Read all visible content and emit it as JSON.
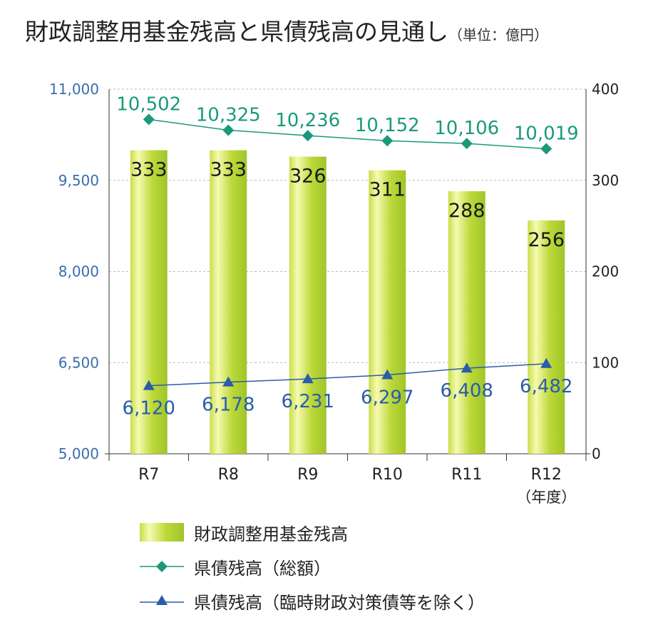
{
  "title": {
    "main": "財政調整用基金残高と県債残高の見通し",
    "unit": "（単位：億円）"
  },
  "legend": {
    "fund": "財政調整用基金残高",
    "debt_total": "県債残高（総額）",
    "debt_excl": "県債残高（臨時財政対策債等を除く）"
  },
  "colors": {
    "bar_gradient": [
      "#c8de4a",
      "#f6fab0",
      "#bcd838",
      "#9fc62a"
    ],
    "debt_total": "#1a9a7a",
    "debt_excl": "#2a5cab",
    "left_axis_text": "#3a6cb0"
  },
  "chart_data": {
    "type": "bar",
    "categories": [
      "R7",
      "R8",
      "R9",
      "R10",
      "R11",
      "R12"
    ],
    "x_unit_label": "（年度）",
    "left_axis": {
      "ylim": [
        5000,
        11000
      ],
      "ticks": [
        "5,000",
        "6,500",
        "8,000",
        "9,500",
        "11,000"
      ],
      "tick_values": [
        5000,
        6500,
        8000,
        9500,
        11000
      ]
    },
    "right_axis": {
      "ylim": [
        0,
        400
      ],
      "ticks": [
        "0",
        "100",
        "200",
        "300",
        "400"
      ],
      "tick_values": [
        0,
        100,
        200,
        300,
        400
      ]
    },
    "grid": true,
    "legend_position": "bottom",
    "series": [
      {
        "name": "財政調整用基金残高",
        "type": "bar",
        "axis": "right",
        "values": [
          333,
          333,
          326,
          311,
          288,
          256
        ],
        "labels": [
          "333",
          "333",
          "326",
          "311",
          "288",
          "256"
        ]
      },
      {
        "name": "県債残高（総額）",
        "type": "line",
        "axis": "left",
        "marker": "diamond",
        "values": [
          10502,
          10325,
          10236,
          10152,
          10106,
          10019
        ],
        "labels": [
          "10,502",
          "10,325",
          "10,236",
          "10,152",
          "10,106",
          "10,019"
        ]
      },
      {
        "name": "県債残高（臨時財政対策債等を除く）",
        "type": "line",
        "axis": "left",
        "marker": "triangle",
        "values": [
          6120,
          6178,
          6231,
          6297,
          6408,
          6482
        ],
        "labels": [
          "6,120",
          "6,178",
          "6,231",
          "6,297",
          "6,408",
          "6,482"
        ]
      }
    ]
  }
}
